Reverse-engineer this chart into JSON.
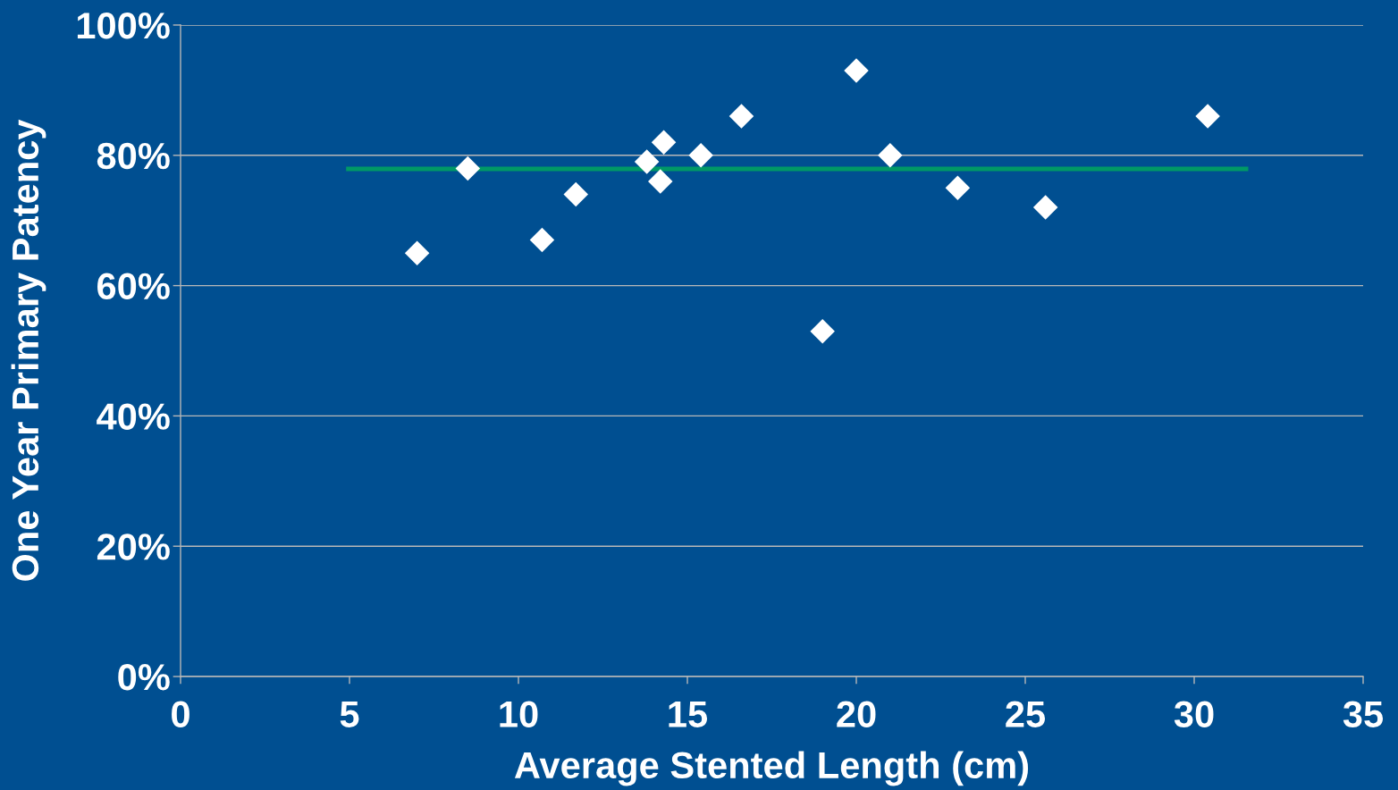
{
  "chart_data": {
    "type": "scatter",
    "xlabel": "Average Stented Length (cm)",
    "ylabel": "One Year Primary Patency",
    "xlim": [
      0,
      35
    ],
    "xticks": [
      0,
      5,
      10,
      15,
      20,
      25,
      30,
      35
    ],
    "ylim": [
      0,
      100
    ],
    "yticks": [
      {
        "value": 0,
        "label": "0%"
      },
      {
        "value": 20,
        "label": "20%"
      },
      {
        "value": 40,
        "label": "40%"
      },
      {
        "value": 60,
        "label": "60%"
      },
      {
        "value": 80,
        "label": "80%"
      },
      {
        "value": 100,
        "label": "100%"
      }
    ],
    "grid": "y",
    "marker": "diamond",
    "series": [
      {
        "type": "line",
        "color": "#009966",
        "x": [
          4.9,
          31.6
        ],
        "values": [
          77.9,
          77.9
        ],
        "marker": "none"
      },
      {
        "color": "#ffffff",
        "x": [
          7.0,
          8.5,
          10.7,
          11.7,
          13.8,
          14.2,
          14.3,
          15.4,
          16.6,
          19.0,
          20.0,
          21.0,
          23.0,
          25.6,
          30.4
        ],
        "values": [
          65,
          78,
          67,
          74,
          79,
          76,
          82,
          80,
          86,
          53,
          93,
          80,
          75,
          72,
          86
        ]
      }
    ]
  }
}
